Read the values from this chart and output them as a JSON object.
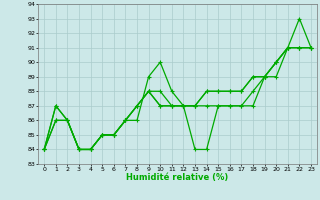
{
  "xlabel": "Humidité relative (%)",
  "xlim": [
    -0.5,
    23.5
  ],
  "ylim": [
    83,
    94
  ],
  "yticks": [
    83,
    84,
    85,
    86,
    87,
    88,
    89,
    90,
    91,
    92,
    93,
    94
  ],
  "xticks": [
    0,
    1,
    2,
    3,
    4,
    5,
    6,
    7,
    8,
    9,
    10,
    11,
    12,
    13,
    14,
    15,
    16,
    17,
    18,
    19,
    20,
    21,
    22,
    23
  ],
  "background_color": "#cce8e8",
  "grid_color": "#aacccc",
  "line_color": "#00aa00",
  "line_width": 0.9,
  "marker": "+",
  "marker_size": 3.5,
  "series": [
    [
      84,
      87,
      86,
      84,
      84,
      85,
      85,
      86,
      86,
      89,
      90,
      88,
      87,
      84,
      84,
      87,
      87,
      87,
      88,
      89,
      89,
      91,
      93,
      91
    ],
    [
      84,
      87,
      86,
      84,
      84,
      85,
      85,
      86,
      87,
      88,
      88,
      87,
      87,
      87,
      88,
      88,
      88,
      88,
      89,
      89,
      90,
      91,
      91,
      91
    ],
    [
      84,
      86,
      86,
      84,
      84,
      85,
      85,
      86,
      87,
      88,
      87,
      87,
      87,
      87,
      87,
      87,
      87,
      87,
      87,
      89,
      90,
      91,
      91,
      91
    ],
    [
      84,
      86,
      86,
      84,
      84,
      85,
      85,
      86,
      87,
      88,
      87,
      87,
      87,
      87,
      88,
      88,
      88,
      88,
      89,
      89,
      90,
      91,
      91,
      91
    ]
  ]
}
